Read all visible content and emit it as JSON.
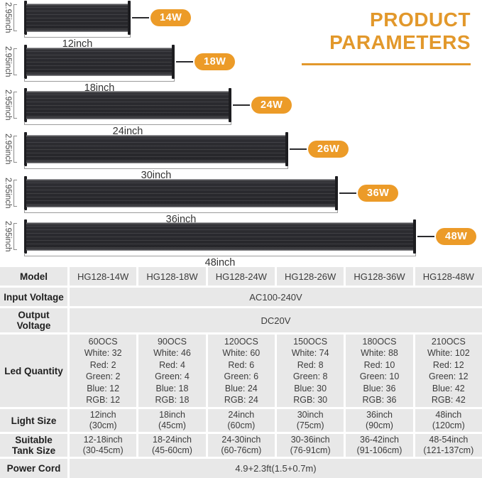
{
  "title": {
    "line1": "PRODUCT",
    "line2": "PARAMETERS"
  },
  "colors": {
    "accent": "#E2982B",
    "badge_bg": "#EC9B28",
    "cell_bg": "#E8E8E8",
    "bar_dark": "#26262A"
  },
  "lights": [
    {
      "height": "2.95inch",
      "length": "12inch",
      "watt": "14W"
    },
    {
      "height": "2.95inch",
      "length": "18inch",
      "watt": "18W"
    },
    {
      "height": "2.95inch",
      "length": "24inch",
      "watt": "24W"
    },
    {
      "height": "2.95inch",
      "length": "30inch",
      "watt": "26W"
    },
    {
      "height": "2.95inch",
      "length": "36inch",
      "watt": "36W"
    },
    {
      "height": "2.95inch",
      "length": "48inch",
      "watt": "48W"
    }
  ],
  "table": {
    "model": {
      "label": "Model",
      "values": [
        "HG128-14W",
        "HG128-18W",
        "HG128-24W",
        "HG128-26W",
        "HG128-36W",
        "HG128-48W"
      ]
    },
    "input_voltage": {
      "label": "Input Voltage",
      "value": "AC100-240V"
    },
    "output_voltage": {
      "label": "Output\nVoltage",
      "value": "DC20V"
    },
    "led_quantity": {
      "label": "Led Quantity",
      "values": [
        "60OCS\nWhite: 32\nRed: 2\nGreen: 2\nBlue: 12\nRGB: 12",
        "90OCS\nWhite: 46\nRed: 4\nGreen: 4\nBlue: 18\nRGB: 18",
        "120OCS\nWhite: 60\nRed: 6\nGreen: 6\nBlue: 24\nRGB: 24",
        "150OCS\nWhite: 74\nRed: 8\nGreen: 8\nBlue: 30\nRGB: 30",
        "180OCS\nWhite: 88\nRed: 10\nGreen: 10\nBlue: 36\nRGB: 36",
        "210OCS\nWhite: 102\nRed: 12\nGreen: 12\nBlue: 42\nRGB: 42"
      ]
    },
    "light_size": {
      "label": "Light Size",
      "values": [
        "12inch\n(30cm)",
        "18inch\n(45cm)",
        "24inch\n(60cm)",
        "30inch\n(75cm)",
        "36inch\n(90cm)",
        "48inch\n(120cm)"
      ]
    },
    "tank_size": {
      "label": "Suitable\nTank Size",
      "values": [
        "12-18inch\n(30-45cm)",
        "18-24inch\n(45-60cm)",
        "24-30inch\n(60-76cm)",
        "30-36inch\n(76-91cm)",
        "36-42inch\n(91-106cm)",
        "48-54inch\n(121-137cm)"
      ]
    },
    "power_cord": {
      "label": "Power Cord",
      "value": "4.9+2.3ft(1.5+0.7m)"
    }
  }
}
